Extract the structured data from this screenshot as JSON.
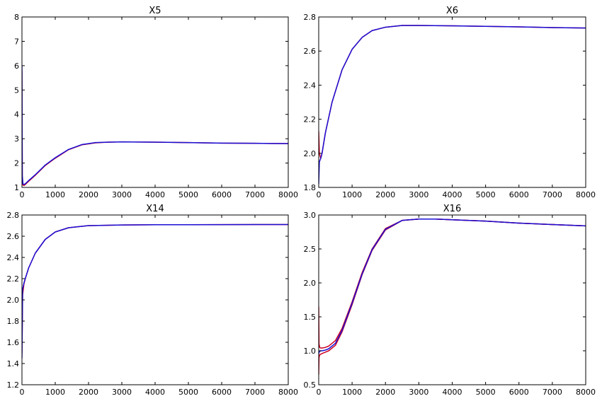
{
  "chart_data": [
    {
      "type": "line",
      "title": "X5",
      "xlim": [
        0,
        8000
      ],
      "ylim": [
        1,
        8
      ],
      "xticks": [
        0,
        1000,
        2000,
        3000,
        4000,
        5000,
        6000,
        7000,
        8000
      ],
      "yticks": [
        1,
        2,
        3,
        4,
        5,
        6,
        7,
        8
      ],
      "series": [
        {
          "color": "#cc0022",
          "x": [
            0,
            10,
            30,
            60,
            100,
            200,
            400,
            700,
            1000,
            1400,
            1800,
            2200,
            2600,
            3000,
            4000,
            5000,
            6000,
            7000,
            8000
          ],
          "y": [
            5.8,
            1.4,
            1.1,
            1.08,
            1.12,
            1.25,
            1.5,
            1.9,
            2.2,
            2.55,
            2.75,
            2.83,
            2.86,
            2.87,
            2.86,
            2.84,
            2.82,
            2.81,
            2.8
          ]
        },
        {
          "color": "#1a0fd6",
          "x": [
            0,
            10,
            30,
            60,
            100,
            200,
            400,
            700,
            1000,
            1400,
            1800,
            2200,
            2600,
            3000,
            4000,
            5000,
            6000,
            7000,
            8000
          ],
          "y": [
            6.0,
            1.5,
            1.15,
            1.12,
            1.15,
            1.28,
            1.52,
            1.92,
            2.22,
            2.56,
            2.76,
            2.84,
            2.86,
            2.87,
            2.86,
            2.84,
            2.82,
            2.81,
            2.8
          ]
        }
      ]
    },
    {
      "type": "line",
      "title": "X6",
      "xlim": [
        0,
        8000
      ],
      "ylim": [
        1.8,
        2.8
      ],
      "xticks": [
        0,
        1000,
        2000,
        3000,
        4000,
        5000,
        6000,
        7000,
        8000
      ],
      "yticks": [
        1.8,
        2.0,
        2.2,
        2.4,
        2.6,
        2.8
      ],
      "series": [
        {
          "color": "#cc0022",
          "x": [
            0,
            20,
            60,
            100,
            200,
            400,
            700,
            1000,
            1300,
            1600,
            2000,
            2500,
            3000,
            4000,
            5000,
            6000,
            7000,
            8000
          ],
          "y": [
            2.13,
            2.0,
            1.97,
            2.0,
            2.12,
            2.3,
            2.49,
            2.61,
            2.68,
            2.72,
            2.74,
            2.75,
            2.75,
            2.748,
            2.745,
            2.742,
            2.738,
            2.735
          ]
        },
        {
          "color": "#1a0fd6",
          "x": [
            0,
            20,
            60,
            100,
            200,
            400,
            700,
            1000,
            1300,
            1600,
            2000,
            2500,
            3000,
            4000,
            5000,
            6000,
            7000,
            8000
          ],
          "y": [
            1.82,
            1.95,
            1.97,
            2.0,
            2.12,
            2.3,
            2.49,
            2.61,
            2.68,
            2.72,
            2.74,
            2.75,
            2.75,
            2.748,
            2.745,
            2.742,
            2.738,
            2.735
          ]
        }
      ]
    },
    {
      "type": "line",
      "title": "X14",
      "xlim": [
        0,
        8000
      ],
      "ylim": [
        1.2,
        2.8
      ],
      "xticks": [
        0,
        1000,
        2000,
        3000,
        4000,
        5000,
        6000,
        7000,
        8000
      ],
      "yticks": [
        1.2,
        1.4,
        1.6,
        1.8,
        2.0,
        2.2,
        2.4,
        2.6,
        2.8
      ],
      "series": [
        {
          "color": "#cc0022",
          "x": [
            0,
            20,
            60,
            100,
            200,
            400,
            700,
            1000,
            1400,
            2000,
            3000,
            4000,
            5000,
            6000,
            7000,
            8000
          ],
          "y": [
            1.5,
            2.05,
            2.15,
            2.2,
            2.3,
            2.44,
            2.57,
            2.64,
            2.68,
            2.7,
            2.706,
            2.708,
            2.708,
            2.709,
            2.71,
            2.71
          ]
        },
        {
          "color": "#1a0fd6",
          "x": [
            0,
            20,
            60,
            100,
            200,
            400,
            700,
            1000,
            1400,
            2000,
            3000,
            4000,
            5000,
            6000,
            7000,
            8000
          ],
          "y": [
            1.45,
            2.1,
            2.16,
            2.2,
            2.3,
            2.44,
            2.57,
            2.64,
            2.68,
            2.7,
            2.706,
            2.708,
            2.708,
            2.709,
            2.71,
            2.71
          ]
        }
      ]
    },
    {
      "type": "line",
      "title": "X16",
      "xlim": [
        0,
        8000
      ],
      "ylim": [
        0.5,
        3.0
      ],
      "xticks": [
        0,
        1000,
        2000,
        3000,
        4000,
        5000,
        6000,
        7000,
        8000
      ],
      "yticks": [
        0.5,
        1.0,
        1.5,
        2.0,
        2.5,
        3.0
      ],
      "series": [
        {
          "color": "#cc0022",
          "x": [
            0,
            10,
            30,
            60,
            100,
            200,
            300,
            500,
            700,
            1000,
            1300,
            1600,
            2000,
            2500,
            3000,
            3500,
            4000,
            5000,
            6000,
            7000,
            8000
          ],
          "y": [
            1.65,
            1.1,
            1.05,
            1.04,
            1.04,
            1.05,
            1.07,
            1.15,
            1.33,
            1.72,
            2.15,
            2.5,
            2.8,
            2.92,
            2.94,
            2.94,
            2.93,
            2.91,
            2.88,
            2.86,
            2.84
          ]
        },
        {
          "color": "#cc0022",
          "x": [
            0,
            10,
            30,
            60,
            100,
            200,
            300,
            500,
            700,
            1000,
            1300,
            1600,
            2000,
            2500,
            3000,
            3500,
            4000,
            5000,
            6000,
            7000,
            8000
          ],
          "y": [
            0.65,
            0.9,
            0.94,
            0.95,
            0.96,
            0.98,
            1.0,
            1.08,
            1.28,
            1.68,
            2.12,
            2.48,
            2.78,
            2.92,
            2.94,
            2.94,
            2.93,
            2.91,
            2.88,
            2.86,
            2.84
          ]
        },
        {
          "color": "#1a0fd6",
          "x": [
            0,
            10,
            30,
            60,
            100,
            200,
            300,
            500,
            700,
            1000,
            1300,
            1600,
            2000,
            2500,
            3000,
            3500,
            4000,
            5000,
            6000,
            7000,
            8000
          ],
          "y": [
            0.95,
            0.98,
            0.99,
            1.0,
            1.0,
            1.01,
            1.03,
            1.11,
            1.3,
            1.7,
            2.13,
            2.49,
            2.79,
            2.92,
            2.94,
            2.94,
            2.93,
            2.91,
            2.88,
            2.86,
            2.84
          ]
        }
      ]
    }
  ]
}
